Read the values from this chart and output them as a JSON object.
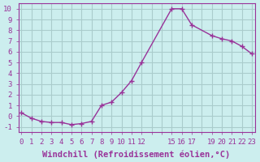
{
  "x": [
    0,
    1,
    2,
    3,
    4,
    5,
    6,
    7,
    8,
    9,
    10,
    11,
    12,
    15,
    16,
    17,
    19,
    20,
    21,
    22,
    23
  ],
  "y": [
    0.3,
    -0.2,
    -0.5,
    -0.6,
    -0.6,
    -0.8,
    -0.7,
    -0.5,
    1.0,
    1.3,
    2.2,
    3.3,
    5.0,
    10.0,
    10.0,
    8.5,
    7.5,
    7.2,
    7.0,
    6.5,
    5.8
  ],
  "line_color": "#993399",
  "marker_color": "#993399",
  "bg_color": "#cceeee",
  "grid_color": "#aacccc",
  "xlabel": "Windchill (Refroidissement éolien,°C)",
  "xlabel_color": "#993399",
  "xlabel_fontsize": 7.5,
  "tick_color": "#993399",
  "tick_fontsize": 6.5,
  "xtick_labels": [
    "0",
    "1",
    "2",
    "3",
    "4",
    "5",
    "6",
    "7",
    "8",
    "9",
    "10",
    "11",
    "12",
    "",
    "",
    "15",
    "16",
    "17",
    "",
    "19",
    "20",
    "21",
    "22",
    "23"
  ],
  "xtick_positions": [
    0,
    1,
    2,
    3,
    4,
    5,
    6,
    7,
    8,
    9,
    10,
    11,
    12,
    13,
    14,
    15,
    16,
    17,
    18,
    19,
    20,
    21,
    22,
    23
  ],
  "ylim": [
    -1.5,
    10.5
  ],
  "xlim": [
    -0.3,
    23.3
  ],
  "ytick_positions": [
    -1,
    0,
    1,
    2,
    3,
    4,
    5,
    6,
    7,
    8,
    9,
    10
  ],
  "ytick_labels": [
    "-1",
    "0",
    "1",
    "2",
    "3",
    "4",
    "5",
    "6",
    "7",
    "8",
    "9",
    "10"
  ]
}
